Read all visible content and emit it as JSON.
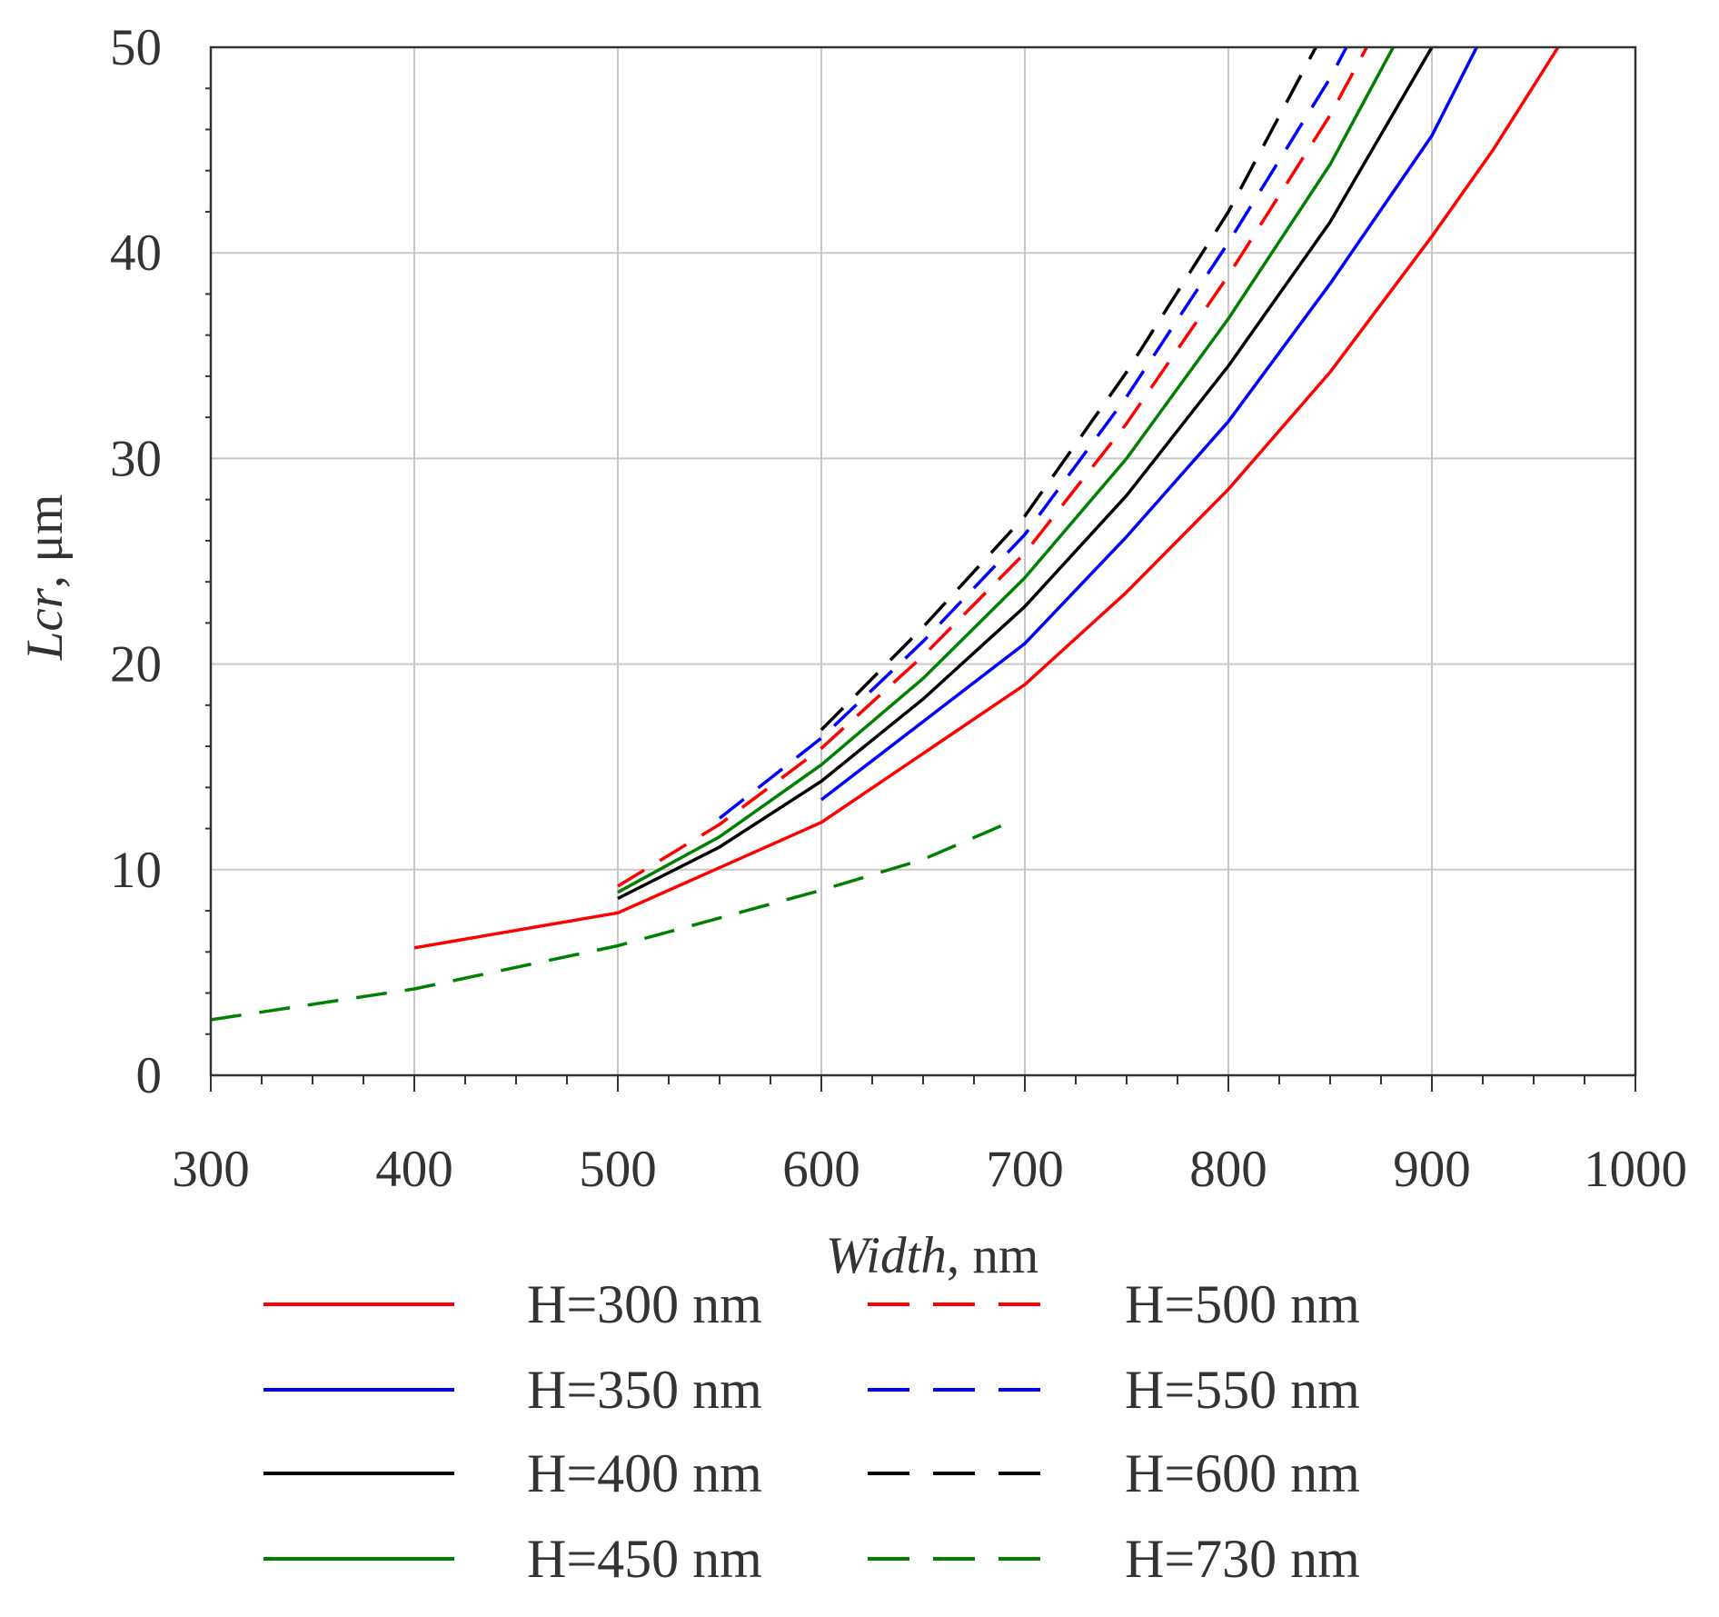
{
  "chart_data": {
    "type": "line",
    "title": "",
    "xlabel_var": "Width",
    "xlabel_unit": ", nm",
    "ylabel_var": "Lcr",
    "ylabel_unit": ", μm",
    "xlim": [
      300,
      1000
    ],
    "ylim": [
      0,
      50
    ],
    "xticks": [
      300,
      400,
      500,
      600,
      700,
      800,
      900,
      1000
    ],
    "yticks": [
      0,
      10,
      20,
      30,
      40,
      50
    ],
    "grid": true,
    "legend_position": "bottom",
    "series": [
      {
        "name": "H=300 nm",
        "color": "#ff0000",
        "dash": "solid",
        "x": [
          400,
          500,
          600,
          700,
          750,
          800,
          850,
          900,
          930,
          962
        ],
        "y": [
          6.2,
          7.9,
          12.3,
          19.0,
          23.5,
          28.5,
          34.2,
          40.8,
          45.0,
          50.0
        ]
      },
      {
        "name": "H=350 nm",
        "color": "#0000ff",
        "dash": "solid",
        "x": [
          600,
          650,
          700,
          750,
          800,
          850,
          900,
          922
        ],
        "y": [
          13.4,
          17.2,
          21.0,
          26.2,
          31.8,
          38.5,
          45.7,
          50.0
        ]
      },
      {
        "name": "H=400 nm",
        "color": "#000000",
        "dash": "solid",
        "x": [
          500,
          550,
          600,
          650,
          700,
          750,
          800,
          850,
          900
        ],
        "y": [
          8.6,
          11.1,
          14.3,
          18.3,
          22.8,
          28.2,
          34.5,
          41.5,
          50.0
        ]
      },
      {
        "name": "H=450 nm",
        "color": "#008000",
        "dash": "solid",
        "x": [
          500,
          550,
          600,
          650,
          700,
          750,
          800,
          850,
          881
        ],
        "y": [
          8.9,
          11.6,
          15.1,
          19.3,
          24.2,
          30.0,
          36.8,
          44.3,
          50.0
        ]
      },
      {
        "name": "H=500 nm",
        "color": "#ff0000",
        "dash": "dashed",
        "x": [
          500,
          550,
          600,
          650,
          700,
          750,
          800,
          850,
          868
        ],
        "y": [
          9.2,
          12.2,
          15.9,
          20.4,
          25.4,
          31.7,
          38.9,
          46.7,
          50.0
        ]
      },
      {
        "name": "H=550 nm",
        "color": "#0000ff",
        "dash": "dashed",
        "x": [
          550,
          600,
          650,
          700,
          750,
          800,
          850,
          858
        ],
        "y": [
          12.5,
          16.4,
          21.1,
          26.3,
          33.0,
          40.5,
          48.5,
          50.0
        ]
      },
      {
        "name": "H=600 nm",
        "color": "#000000",
        "dash": "dashed",
        "x": [
          600,
          650,
          700,
          750,
          800,
          843
        ],
        "y": [
          16.8,
          21.8,
          27.2,
          34.2,
          42.0,
          50.0
        ]
      },
      {
        "name": "H=730 nm",
        "color": "#008000",
        "dash": "dashed",
        "x": [
          300,
          400,
          500,
          600,
          650,
          690
        ],
        "y": [
          2.7,
          4.2,
          6.3,
          9.0,
          10.5,
          12.2
        ]
      }
    ]
  }
}
